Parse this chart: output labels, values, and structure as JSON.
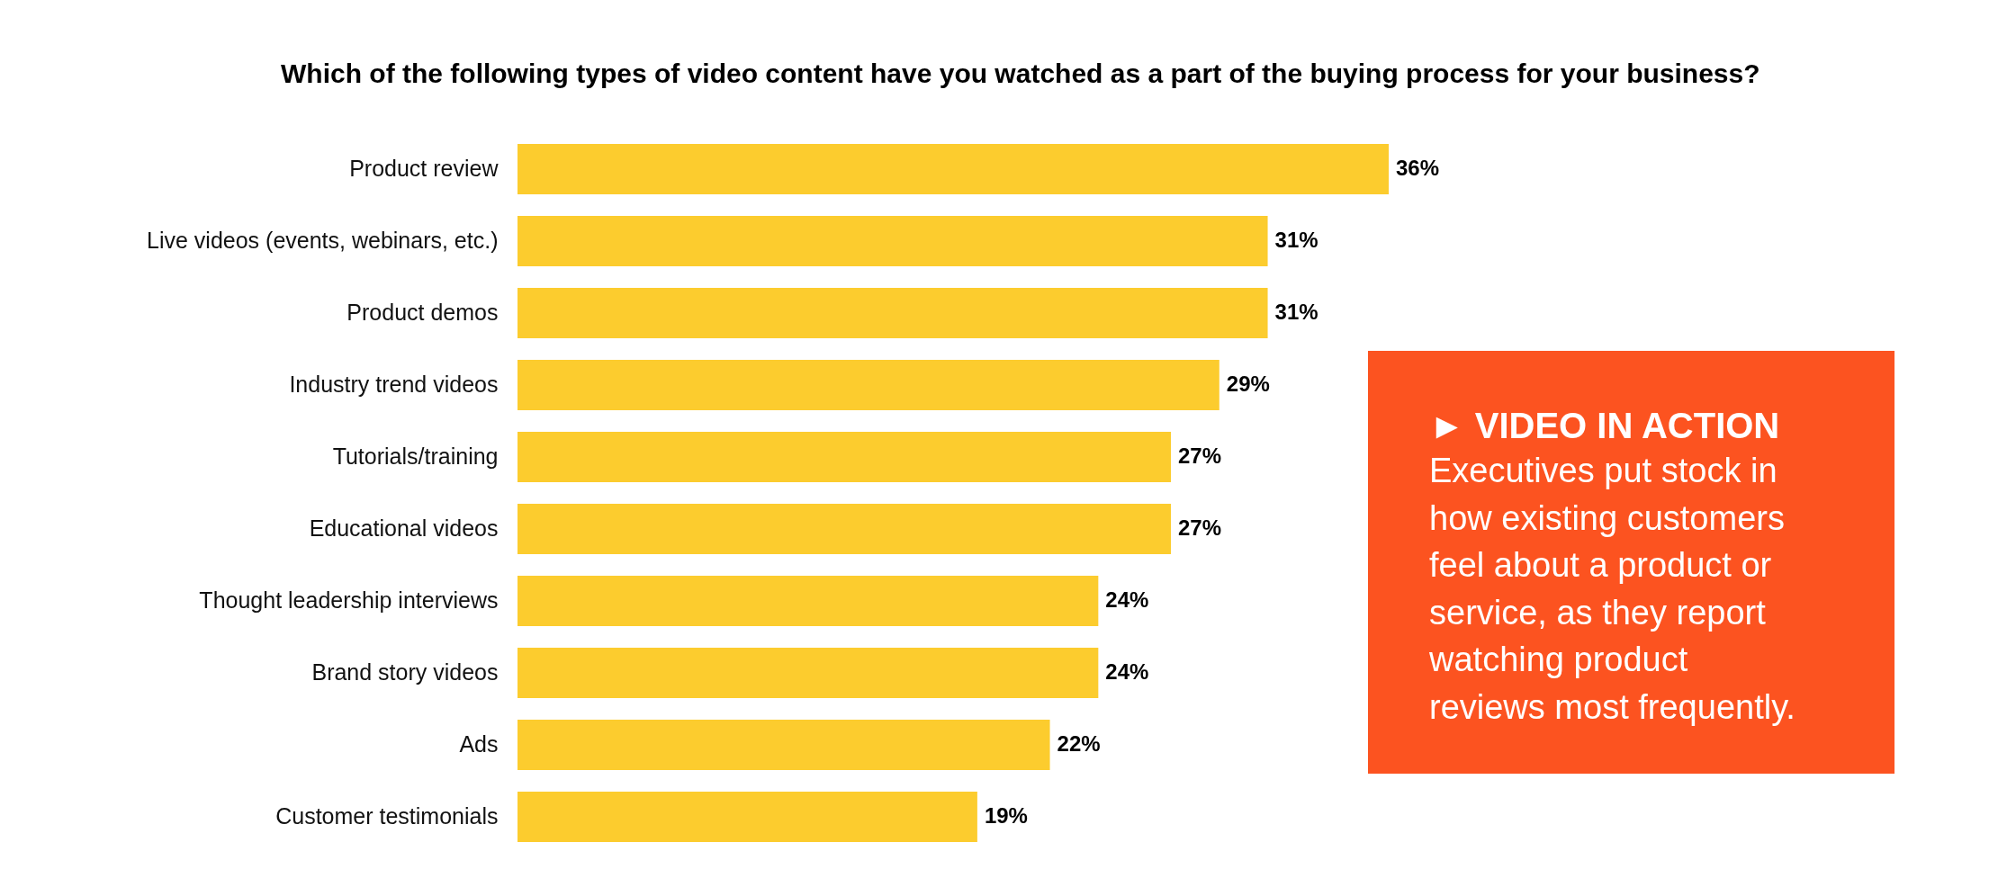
{
  "chart_data": {
    "type": "bar",
    "orientation": "horizontal",
    "title": "Which of the following types of video content have you watched as a part of the buying process for your business?",
    "categories": [
      "Product review",
      "Live videos (events, webinars, etc.)",
      "Product demos",
      "Industry trend videos",
      "Tutorials/training",
      "Educational videos",
      "Thought leadership interviews",
      "Brand story videos",
      "Ads",
      "Customer testimonials"
    ],
    "values": [
      36,
      31,
      31,
      29,
      27,
      27,
      24,
      24,
      22,
      19
    ],
    "value_labels": [
      "36%",
      "31%",
      "31%",
      "29%",
      "27%",
      "27%",
      "24%",
      "24%",
      "22%",
      "19%"
    ],
    "color": "#fccc2e",
    "annotations": [
      "► VIDEO IN ACTION",
      "Executives put stock in how existing customers feel about a product or service, as they report watching product reviews most frequently."
    ]
  }
}
